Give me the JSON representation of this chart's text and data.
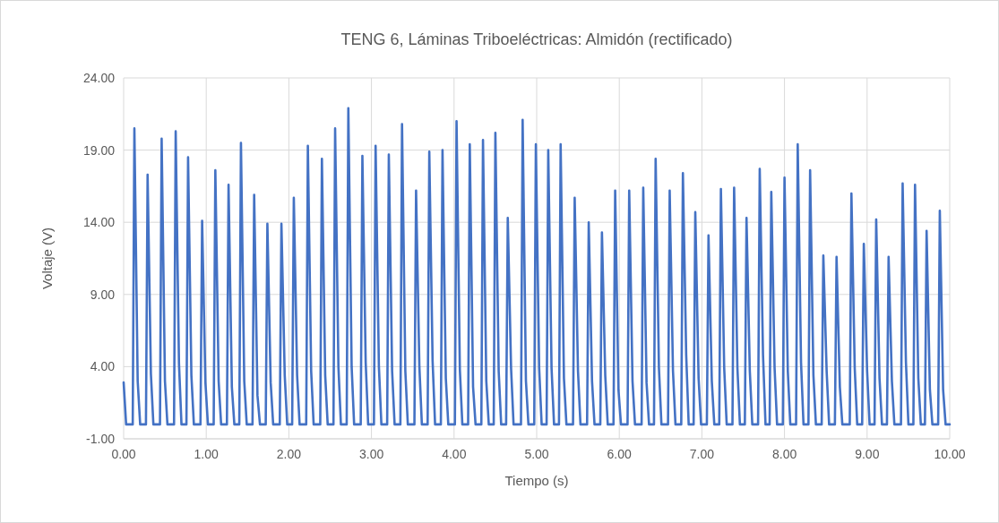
{
  "chart_data": {
    "type": "line",
    "title": "TENG 6, Láminas Triboeléctricas: Almidón (rectificado)",
    "xlabel": "Tiempo (s)",
    "ylabel": "Voltaje (V)",
    "xlim": [
      0,
      10
    ],
    "ylim": [
      -1,
      24
    ],
    "xticks": [
      {
        "value": 0,
        "label": "0.00"
      },
      {
        "value": 1,
        "label": "1.00"
      },
      {
        "value": 2,
        "label": "2.00"
      },
      {
        "value": 3,
        "label": "3.00"
      },
      {
        "value": 4,
        "label": "4.00"
      },
      {
        "value": 5,
        "label": "5.00"
      },
      {
        "value": 6,
        "label": "6.00"
      },
      {
        "value": 7,
        "label": "7.00"
      },
      {
        "value": 8,
        "label": "8.00"
      },
      {
        "value": 9,
        "label": "9.00"
      },
      {
        "value": 10,
        "label": "10.00"
      }
    ],
    "yticks": [
      {
        "value": -1,
        "label": "-1.00"
      },
      {
        "value": 4,
        "label": "4.00"
      },
      {
        "value": 9,
        "label": "9.00"
      },
      {
        "value": 14,
        "label": "14.00"
      },
      {
        "value": 19,
        "label": "19.00"
      },
      {
        "value": 24,
        "label": "24.00"
      }
    ],
    "grid": true,
    "marker": "none",
    "line_style": "solid",
    "series": [
      {
        "color": "#4472c4",
        "x": [
          0,
          0.03,
          0.11,
          0.13,
          0.17,
          0.2,
          0.27,
          0.29,
          0.33,
          0.36,
          0.44,
          0.46,
          0.5,
          0.53,
          0.61,
          0.63,
          0.67,
          0.7,
          0.76,
          0.78,
          0.82,
          0.85,
          0.93,
          0.95,
          0.99,
          1.02,
          1.09,
          1.11,
          1.15,
          1.18,
          1.25,
          1.27,
          1.31,
          1.34,
          1.4,
          1.42,
          1.46,
          1.49,
          1.56,
          1.58,
          1.62,
          1.65,
          1.72,
          1.74,
          1.78,
          1.81,
          1.89,
          1.91,
          1.95,
          1.98,
          2.04,
          2.06,
          2.1,
          2.13,
          2.21,
          2.23,
          2.27,
          2.3,
          2.38,
          2.4,
          2.44,
          2.47,
          2.54,
          2.56,
          2.6,
          2.63,
          2.7,
          2.72,
          2.76,
          2.79,
          2.87,
          2.89,
          2.93,
          2.96,
          3.03,
          3.05,
          3.09,
          3.12,
          3.19,
          3.21,
          3.25,
          3.28,
          3.35,
          3.37,
          3.41,
          3.44,
          3.52,
          3.54,
          3.58,
          3.61,
          3.68,
          3.7,
          3.74,
          3.77,
          3.84,
          3.86,
          3.9,
          3.93,
          4.01,
          4.03,
          4.07,
          4.1,
          4.17,
          4.19,
          4.23,
          4.26,
          4.33,
          4.35,
          4.39,
          4.42,
          4.48,
          4.5,
          4.54,
          4.57,
          4.63,
          4.65,
          4.69,
          4.72,
          4.81,
          4.83,
          4.87,
          4.9,
          4.97,
          4.99,
          5.03,
          5.06,
          5.12,
          5.14,
          5.18,
          5.21,
          5.27,
          5.29,
          5.33,
          5.36,
          5.44,
          5.46,
          5.5,
          5.53,
          5.61,
          5.63,
          5.67,
          5.7,
          5.77,
          5.79,
          5.83,
          5.86,
          5.93,
          5.95,
          5.99,
          6.02,
          6.1,
          6.12,
          6.16,
          6.19,
          6.27,
          6.29,
          6.33,
          6.36,
          6.42,
          6.44,
          6.48,
          6.51,
          6.59,
          6.61,
          6.65,
          6.68,
          6.75,
          6.77,
          6.81,
          6.84,
          6.9,
          6.92,
          6.96,
          6.99,
          7.06,
          7.08,
          7.12,
          7.15,
          7.21,
          7.23,
          7.27,
          7.3,
          7.37,
          7.39,
          7.43,
          7.46,
          7.52,
          7.54,
          7.58,
          7.61,
          7.68,
          7.7,
          7.74,
          7.77,
          7.82,
          7.84,
          7.88,
          7.91,
          7.98,
          8.0,
          8.04,
          8.07,
          8.14,
          8.16,
          8.2,
          8.23,
          8.29,
          8.31,
          8.35,
          8.38,
          8.45,
          8.47,
          8.51,
          8.54,
          8.61,
          8.63,
          8.67,
          8.7,
          8.79,
          8.81,
          8.85,
          8.88,
          8.94,
          8.96,
          9.0,
          9.03,
          9.09,
          9.11,
          9.15,
          9.18,
          9.24,
          9.26,
          9.3,
          9.33,
          9.41,
          9.43,
          9.47,
          9.5,
          9.56,
          9.58,
          9.62,
          9.65,
          9.7,
          9.72,
          9.76,
          9.79,
          9.86,
          9.88,
          9.92,
          9.95,
          10
        ],
        "values": [
          2.9,
          0,
          0,
          20.5,
          3.0,
          0,
          0,
          17.3,
          3.5,
          0,
          0,
          19.8,
          3.0,
          0,
          0,
          20.3,
          4.2,
          0,
          0,
          18.5,
          3.4,
          0,
          0,
          14.1,
          2.9,
          0,
          0,
          17.6,
          3.0,
          0,
          0,
          16.6,
          2.6,
          0,
          0,
          19.5,
          3.0,
          0,
          0,
          15.9,
          2.0,
          0,
          0,
          13.9,
          2.9,
          0,
          0,
          13.9,
          3.4,
          0,
          0,
          15.7,
          3.4,
          0,
          0,
          19.3,
          3.7,
          0,
          0,
          18.4,
          3.4,
          0,
          0,
          20.5,
          4.0,
          0,
          0,
          21.9,
          4.0,
          0,
          0,
          18.6,
          4.3,
          0,
          0,
          19.3,
          4.0,
          0,
          0,
          18.7,
          3.7,
          0,
          0,
          20.8,
          3.7,
          0,
          0,
          16.2,
          4.0,
          0,
          0,
          18.9,
          4.4,
          0,
          0,
          19.0,
          3.2,
          0,
          0,
          21.0,
          3.8,
          0,
          0,
          19.4,
          2.6,
          0,
          0,
          19.7,
          3.0,
          0,
          0,
          20.2,
          3.7,
          0,
          0,
          14.3,
          3.9,
          0,
          0,
          21.1,
          3.0,
          0,
          0,
          19.4,
          3.9,
          0,
          0,
          19.0,
          3.9,
          0,
          0,
          19.4,
          3.2,
          0,
          0,
          15.7,
          3.7,
          0,
          0,
          14.0,
          3.0,
          0,
          0,
          13.3,
          3.4,
          0,
          0,
          16.2,
          2.4,
          0,
          0,
          16.2,
          3.0,
          0,
          0,
          16.4,
          2.9,
          0,
          0,
          18.4,
          3.9,
          0,
          0,
          16.2,
          3.7,
          0,
          0,
          17.4,
          4.8,
          0,
          0,
          14.7,
          3.2,
          0,
          0,
          13.1,
          3.0,
          0,
          0,
          16.3,
          3.9,
          0,
          0,
          16.4,
          3.9,
          0,
          0,
          14.3,
          3.7,
          0,
          0,
          17.7,
          4.8,
          0,
          0,
          16.1,
          3.9,
          0,
          0,
          17.1,
          3.7,
          0,
          0,
          19.4,
          4.3,
          0,
          0,
          17.6,
          3.4,
          0,
          0,
          11.7,
          3.7,
          0,
          0,
          11.6,
          2.6,
          0,
          0,
          16.0,
          3.9,
          0,
          0,
          12.5,
          3.7,
          0,
          0,
          14.2,
          3.2,
          0,
          0,
          11.6,
          3.0,
          0,
          0,
          16.7,
          4.3,
          0,
          0,
          16.6,
          3.2,
          0,
          0,
          13.4,
          2.4,
          0,
          0,
          14.8,
          2.4,
          0,
          0
        ]
      }
    ]
  }
}
